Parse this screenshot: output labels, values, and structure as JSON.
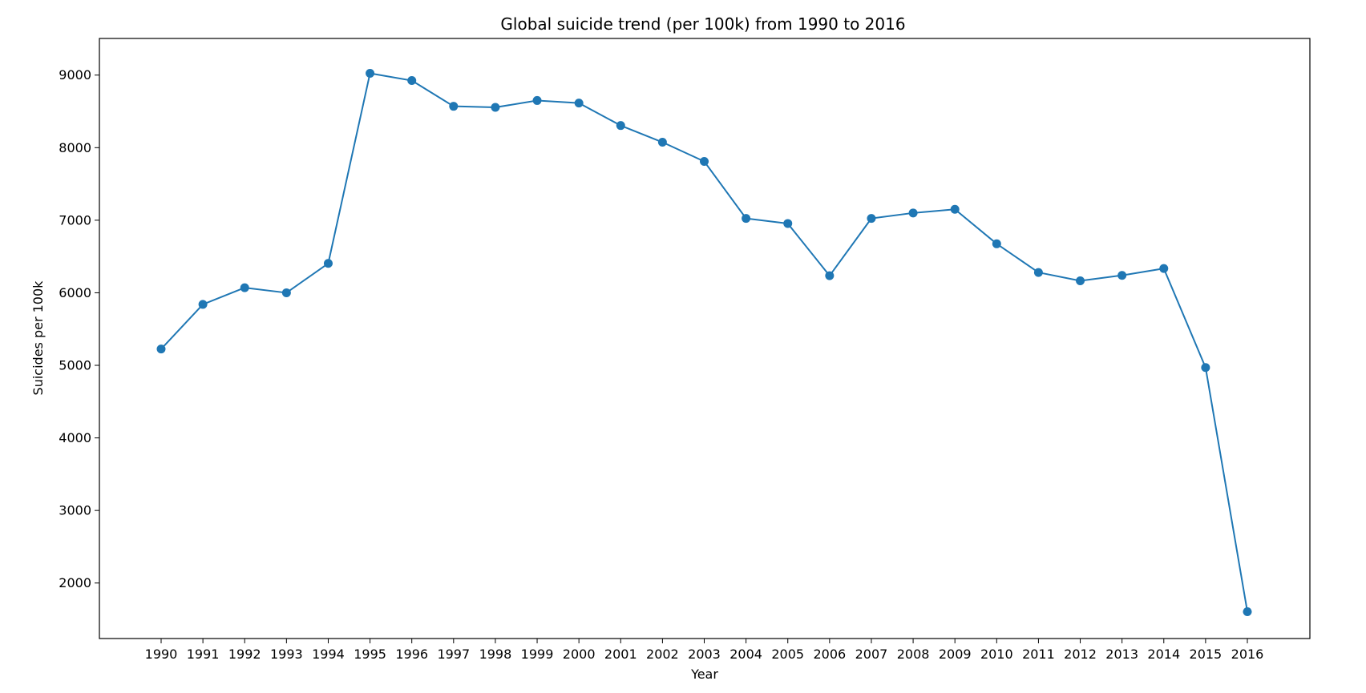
{
  "chart_data": {
    "type": "line",
    "title": "Global suicide trend (per 100k) from 1990 to 2016",
    "xlabel": "Year",
    "ylabel": "Suicides per 100k",
    "categories": [
      "1990",
      "1991",
      "1992",
      "1993",
      "1994",
      "1995",
      "1996",
      "1997",
      "1998",
      "1999",
      "2000",
      "2001",
      "2002",
      "2003",
      "2004",
      "2005",
      "2006",
      "2007",
      "2008",
      "2009",
      "2010",
      "2011",
      "2012",
      "2013",
      "2014",
      "2015",
      "2016"
    ],
    "series": [
      {
        "values": [
          5225,
          5840,
          6070,
          6000,
          6405,
          9025,
          8925,
          8570,
          8555,
          8650,
          8615,
          8305,
          8075,
          7810,
          7025,
          6955,
          6235,
          7025,
          7100,
          7150,
          6675,
          6280,
          6165,
          6240,
          6335,
          4970,
          1605
        ],
        "color": "#1f77b4",
        "marker": "circle"
      }
    ],
    "yticks": [
      2000,
      3000,
      4000,
      5000,
      6000,
      7000,
      8000,
      9000
    ],
    "ylim": [
      1235,
      9505
    ],
    "grid": false,
    "legend": "none"
  }
}
